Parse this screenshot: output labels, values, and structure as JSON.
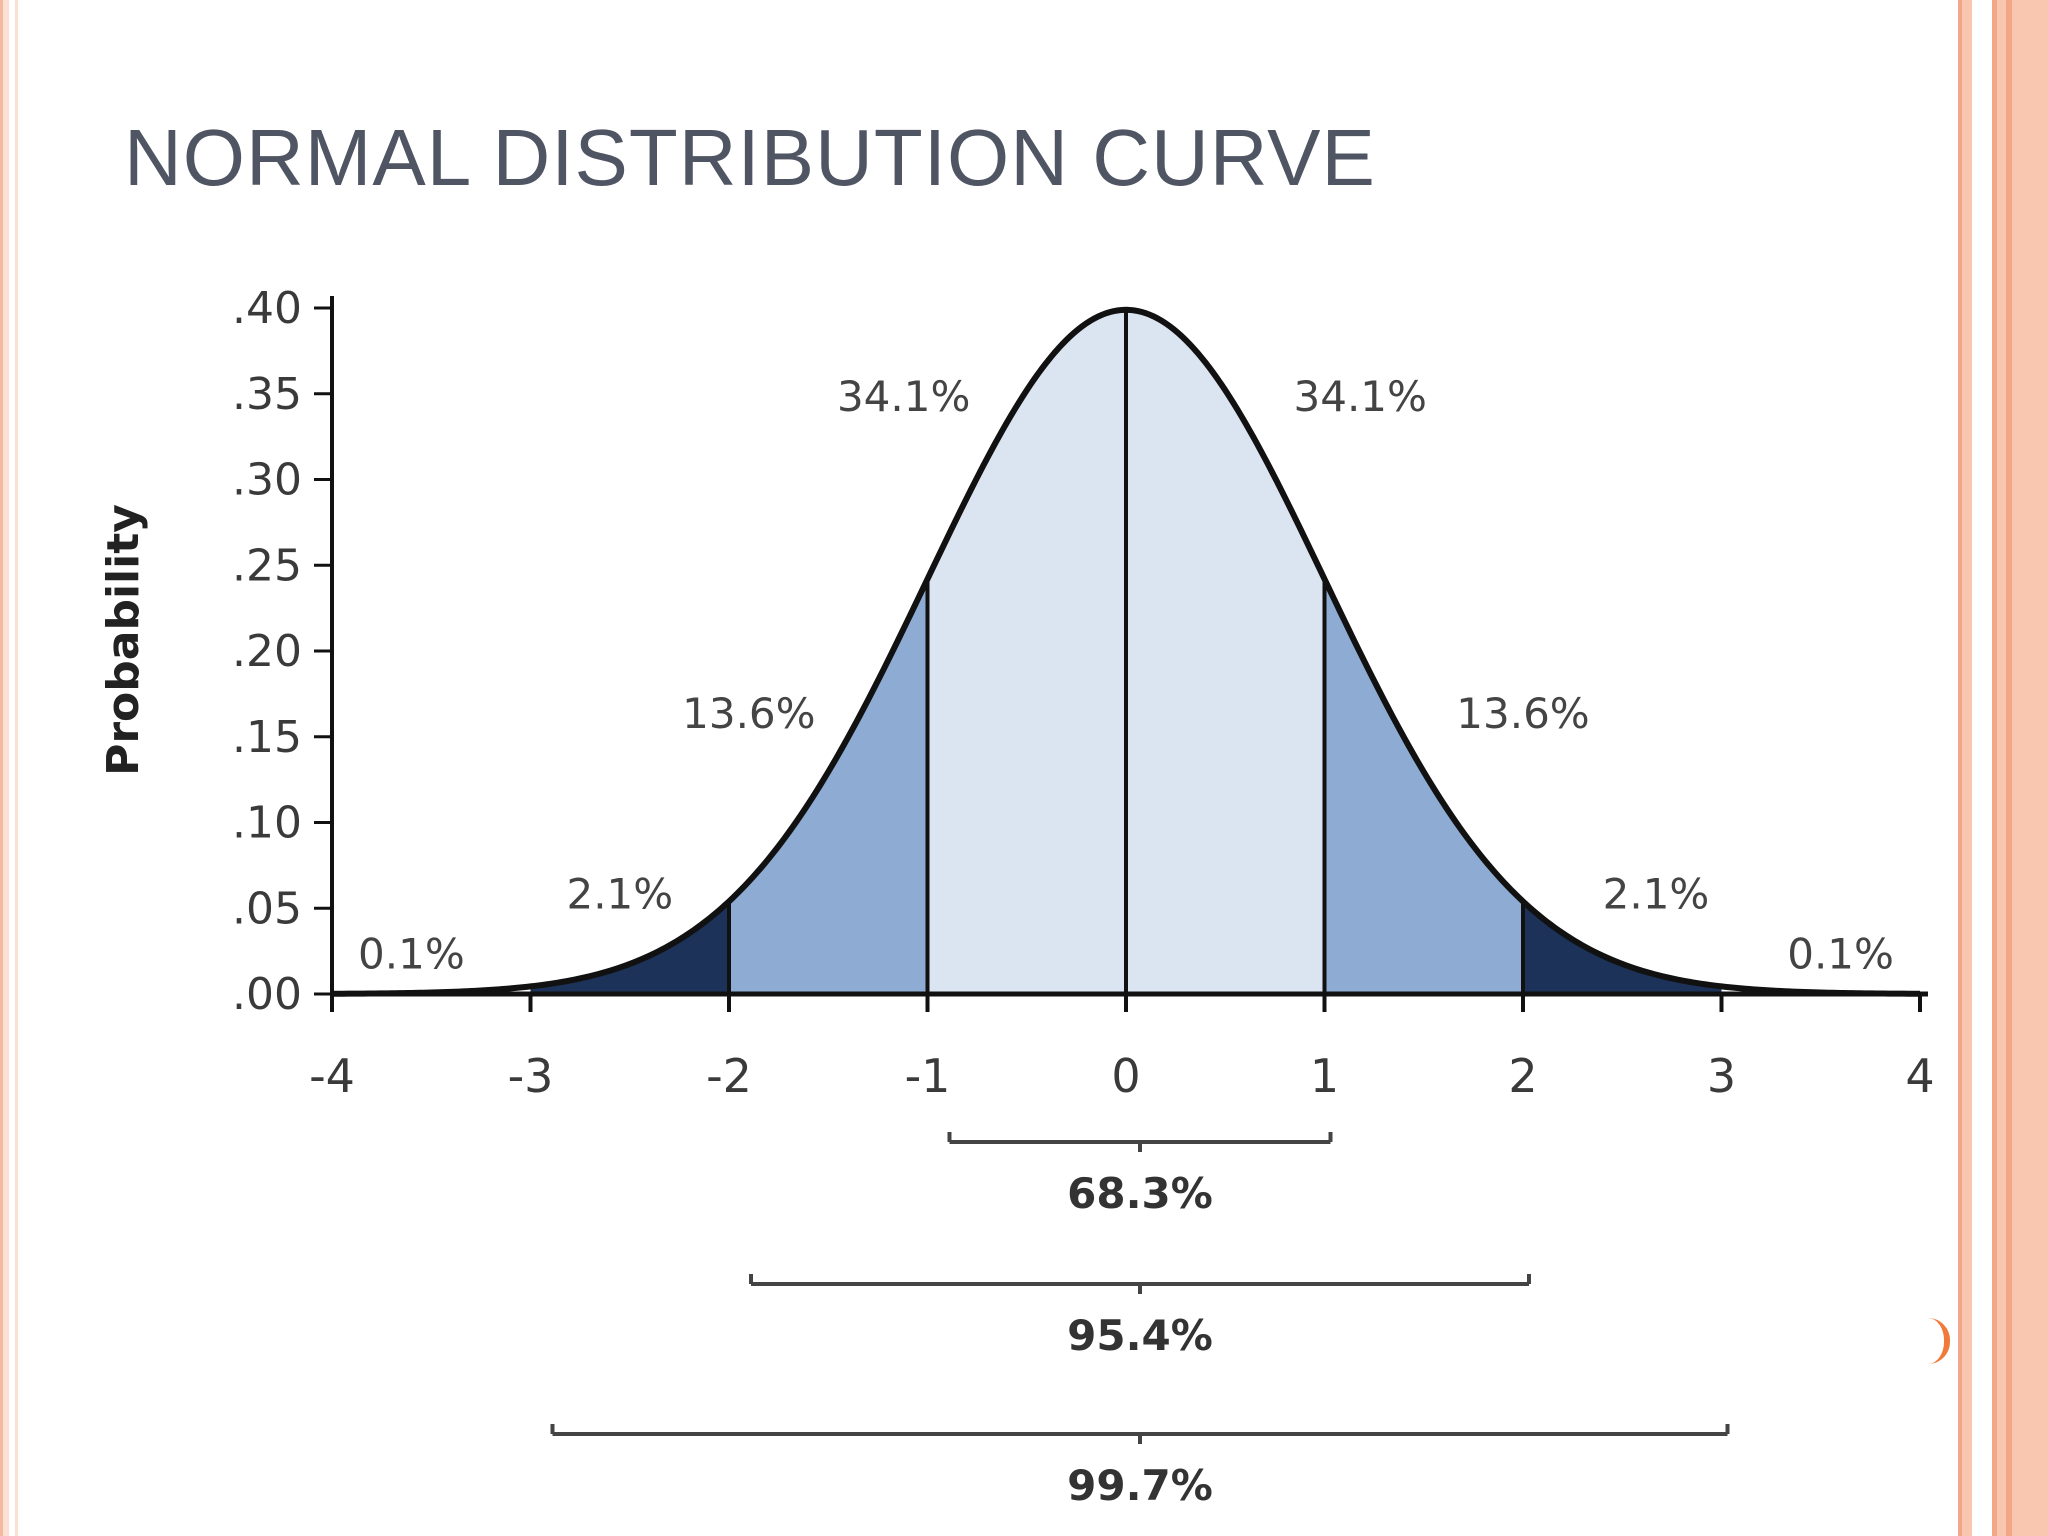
{
  "slide": {
    "title": "NORMAL DISTRIBUTION CURVE"
  },
  "colors": {
    "light": "#dbe4f1",
    "mid": "#8eacd3",
    "dark": "#1c3258",
    "title": "#4f5563",
    "border": "#f9c6b0"
  },
  "chart_data": {
    "type": "area",
    "title": "",
    "xlabel": "",
    "ylabel": "Probability",
    "xlim": [
      -4,
      4
    ],
    "ylim": [
      0,
      0.4
    ],
    "x_ticks": [
      -4,
      -3,
      -2,
      -1,
      0,
      1,
      2,
      3,
      4
    ],
    "x_tick_labels": [
      "-4",
      "-3",
      "-2",
      "-1",
      "0",
      "1",
      "2",
      "3",
      "4"
    ],
    "y_ticks": [
      0,
      0.05,
      0.1,
      0.15,
      0.2,
      0.25,
      0.3,
      0.35,
      0.4
    ],
    "y_tick_labels": [
      ".00",
      ".05",
      ".10",
      ".15",
      ".20",
      ".25",
      ".30",
      ".35",
      ".40"
    ],
    "curve": "standard normal density, mean 0, sd 1",
    "regions": [
      {
        "from": -4,
        "to": -3,
        "label": "0.1%",
        "shade": "none",
        "label_x": -3.6,
        "label_y": 0.015
      },
      {
        "from": -3,
        "to": -2,
        "label": "2.1%",
        "shade": "dark",
        "label_x": -2.55,
        "label_y": 0.05
      },
      {
        "from": -2,
        "to": -1,
        "label": "13.6%",
        "shade": "mid",
        "label_x": -1.9,
        "label_y": 0.155
      },
      {
        "from": -1,
        "to": 0,
        "label": "34.1%",
        "shade": "light",
        "label_x": -1.12,
        "label_y": 0.34
      },
      {
        "from": 0,
        "to": 1,
        "label": "34.1%",
        "shade": "light",
        "label_x": 1.18,
        "label_y": 0.34
      },
      {
        "from": 1,
        "to": 2,
        "label": "13.6%",
        "shade": "mid",
        "label_x": 2.0,
        "label_y": 0.155
      },
      {
        "from": 2,
        "to": 3,
        "label": "2.1%",
        "shade": "dark",
        "label_x": 2.67,
        "label_y": 0.05
      },
      {
        "from": 3,
        "to": 4,
        "label": "0.1%",
        "shade": "none",
        "label_x": 3.6,
        "label_y": 0.015
      }
    ],
    "ranges": [
      {
        "from": -1,
        "to": 1,
        "label": "68.3%"
      },
      {
        "from": -2,
        "to": 2,
        "label": "95.4%"
      },
      {
        "from": -3,
        "to": 3,
        "label": "99.7%"
      }
    ]
  }
}
